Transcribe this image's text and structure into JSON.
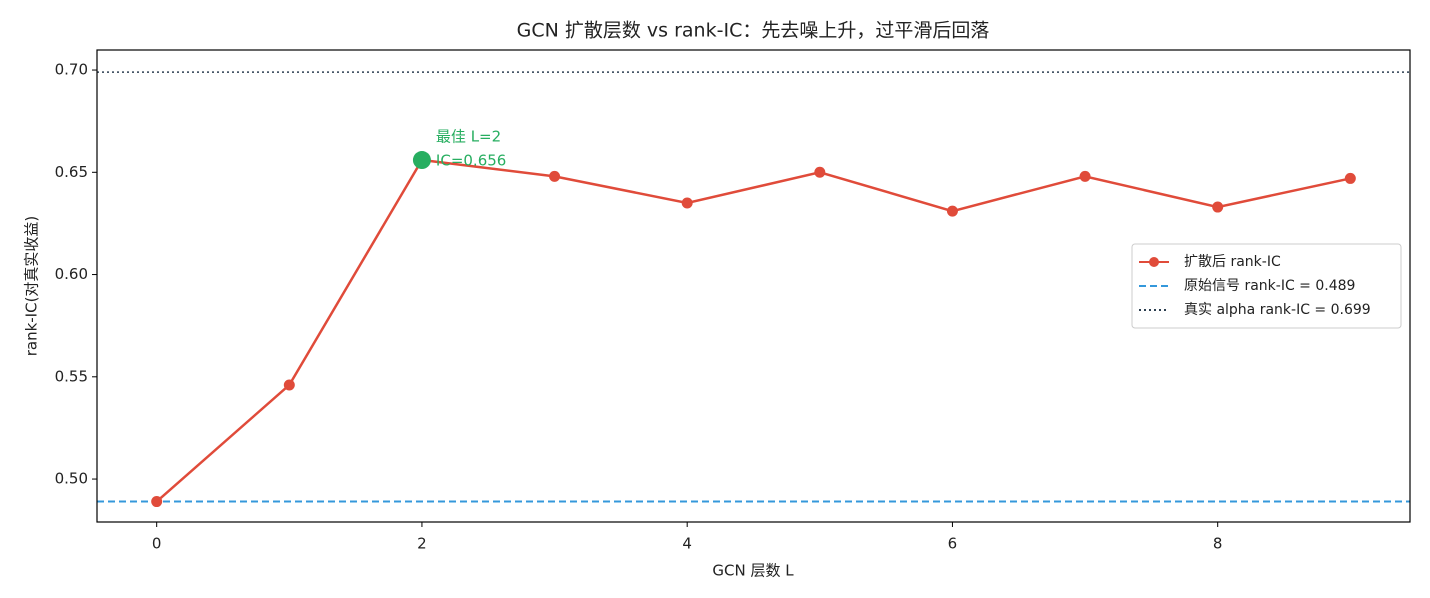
{
  "chart_data": {
    "type": "line",
    "title": "GCN 扩散层数 vs rank-IC：先去噪上升，过平滑后回落",
    "xlabel": "GCN 层数 L",
    "ylabel": "rank-IC(对真实收益)",
    "x": [
      0,
      1,
      2,
      3,
      4,
      5,
      6,
      7,
      8,
      9
    ],
    "series": [
      {
        "name": "扩散后 rank-IC",
        "color": "#e04b3a",
        "values": [
          0.489,
          0.546,
          0.656,
          0.648,
          0.635,
          0.65,
          0.631,
          0.648,
          0.633,
          0.647
        ]
      }
    ],
    "hlines": [
      {
        "name": "原始信号 rank-IC = 0.489",
        "value": 0.489,
        "color": "#3498db",
        "style": "dashed"
      },
      {
        "name": "真实 alpha rank-IC = 0.699",
        "value": 0.699,
        "color": "#2c3e50",
        "style": "dotted"
      }
    ],
    "annotation": {
      "x": 2,
      "lines": [
        "最佳 L=2",
        "IC=0.656"
      ],
      "color": "#27ae60"
    },
    "xlim": [
      -0.45,
      9.45
    ],
    "ylim": [
      0.479,
      0.7098
    ],
    "xticks": [
      0,
      2,
      4,
      6,
      8
    ],
    "yticks": [
      {
        "value": 0.5,
        "label": "0.50"
      },
      0.55,
      {
        "value": 0.6,
        "label": "0.60"
      },
      0.65,
      {
        "value": 0.7,
        "label": "0.70"
      }
    ],
    "legend": "center right"
  }
}
